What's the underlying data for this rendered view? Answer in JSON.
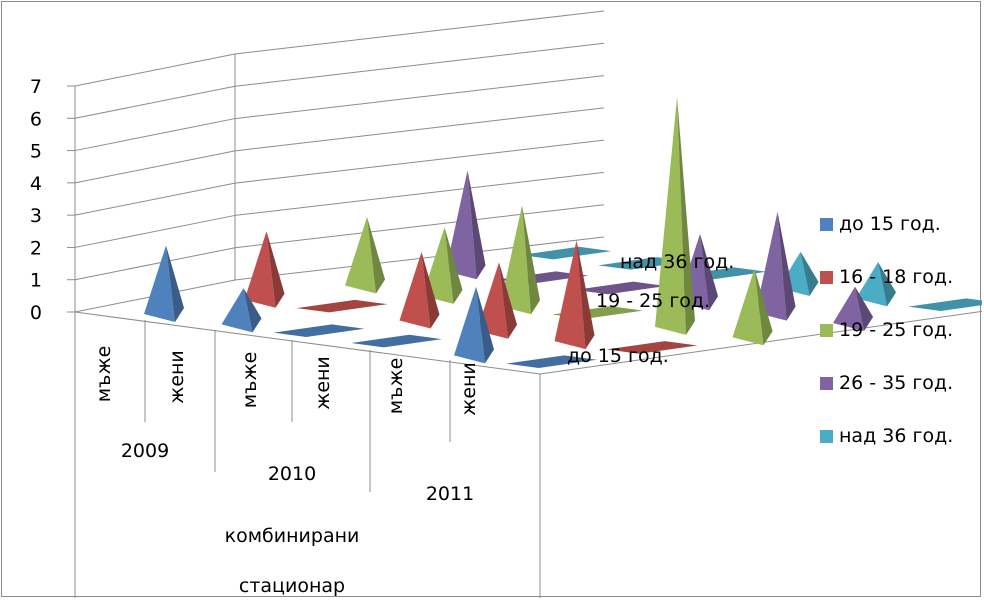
{
  "chart_data": {
    "type": "bar",
    "subtype": "3d-pyramid",
    "y_ticks": [
      "0",
      "1",
      "2",
      "3",
      "4",
      "5",
      "6",
      "7"
    ],
    "ylim": [
      0,
      7
    ],
    "grid": true,
    "legend_position": "right",
    "categories": [
      {
        "label": "мъже",
        "year": "2009"
      },
      {
        "label": "жени",
        "year": "2009"
      },
      {
        "label": "мъже",
        "year": "2010"
      },
      {
        "label": "жени",
        "year": "2010"
      },
      {
        "label": "мъже",
        "year": "2011"
      },
      {
        "label": "жени",
        "year": "2011"
      }
    ],
    "groups": {
      "years": [
        "2009",
        "2010",
        "2011"
      ],
      "level2": "комбинирани",
      "level3": "стационар"
    },
    "depth_labels": [
      "до 15 год.",
      "19 - 25 год.",
      "над 36 год."
    ],
    "series": [
      {
        "name": "до 15 год.",
        "color": "#4f81bd",
        "values": [
          2,
          1,
          0,
          0,
          2,
          0
        ]
      },
      {
        "name": "16 - 18 год.",
        "color": "#c0504d",
        "values": [
          2,
          0,
          2,
          2,
          3,
          0
        ]
      },
      {
        "name": "19 - 25 год.",
        "color": "#9bbb59",
        "values": [
          2,
          2,
          3,
          0,
          7,
          2
        ]
      },
      {
        "name": "26 - 35 год.",
        "color": "#8064a2",
        "values": [
          3,
          0,
          0,
          2,
          3,
          1
        ]
      },
      {
        "name": "над 36 год.",
        "color": "#4bacc6",
        "values": [
          0,
          0,
          0,
          1,
          1,
          0
        ]
      }
    ]
  }
}
